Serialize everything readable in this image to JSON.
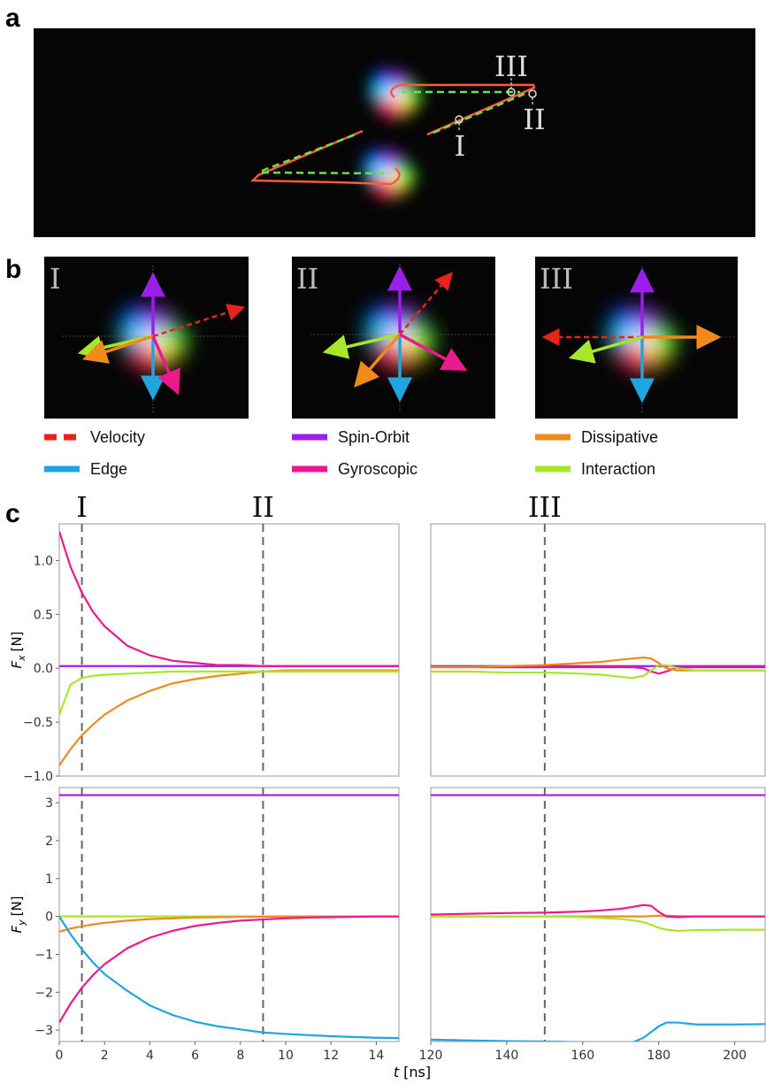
{
  "panel_labels": {
    "a": "a",
    "b": "b",
    "c": "c"
  },
  "panel_a": {
    "markers": [
      "III",
      "II",
      "I"
    ]
  },
  "panel_b": {
    "insets": [
      "I",
      "II",
      "III"
    ],
    "legend": [
      {
        "name": "Velocity",
        "color": "#e8231c",
        "dashed": true
      },
      {
        "name": "Spin-Orbit",
        "color": "#9b1fe8"
      },
      {
        "name": "Dissipative",
        "color": "#f18a1c"
      },
      {
        "name": "Edge",
        "color": "#1fa6e0"
      },
      {
        "name": "Gyroscopic",
        "color": "#ea1a8e"
      },
      {
        "name": "Interaction",
        "color": "#a8e62a"
      }
    ]
  },
  "chart_data": [
    {
      "type": "line",
      "x": [
        0,
        0.5,
        1,
        1.5,
        2,
        3,
        4,
        5,
        6,
        7,
        8,
        9,
        10,
        11,
        12,
        13,
        14,
        15
      ],
      "xlim": [
        0,
        15
      ],
      "ylim": [
        -1.0,
        1.34
      ],
      "yticks": [
        {
          "value": 1,
          "label": "1.0"
        },
        {
          "value": 0.5,
          "label": "0.5"
        },
        {
          "value": 0,
          "label": "0.0"
        },
        {
          "value": -0.5,
          "label": "−0.5"
        },
        {
          "value": -1,
          "label": "−1.0"
        }
      ],
      "y_label": {
        "symbol": "F",
        "subscript": "x",
        "unit": "[N]"
      },
      "vlines": [
        {
          "x": 1,
          "label": "I"
        },
        {
          "x": 9,
          "label": "II"
        }
      ],
      "series": [
        {
          "name": "Spin-Orbit",
          "color": "#9b1fe8",
          "values": [
            0.02,
            0.02,
            0.02,
            0.02,
            0.02,
            0.02,
            0.02,
            0.02,
            0.02,
            0.02,
            0.02,
            0.02,
            0.02,
            0.02,
            0.02,
            0.02,
            0.02,
            0.02
          ]
        },
        {
          "name": "Gyroscopic",
          "color": "#ea1a8e",
          "values": [
            1.27,
            0.94,
            0.7,
            0.52,
            0.39,
            0.21,
            0.12,
            0.07,
            0.05,
            0.03,
            0.03,
            0.02,
            0.02,
            0.02,
            0.02,
            0.02,
            0.02,
            0.02
          ]
        },
        {
          "name": "Dissipative",
          "color": "#f18a1c",
          "values": [
            -0.9,
            -0.75,
            -0.62,
            -0.52,
            -0.43,
            -0.3,
            -0.21,
            -0.14,
            -0.1,
            -0.07,
            -0.05,
            -0.03,
            -0.02,
            -0.02,
            -0.02,
            -0.02,
            -0.02,
            -0.02
          ]
        },
        {
          "name": "Interaction",
          "color": "#a8e62a",
          "values": [
            -0.43,
            -0.15,
            -0.09,
            -0.07,
            -0.06,
            -0.05,
            -0.04,
            -0.03,
            -0.03,
            -0.03,
            -0.03,
            -0.03,
            -0.03,
            -0.03,
            -0.03,
            -0.03,
            -0.03,
            -0.03
          ]
        }
      ]
    },
    {
      "type": "line",
      "x": [
        120,
        130,
        140,
        150,
        160,
        165,
        170,
        173,
        176,
        178,
        180,
        182,
        185,
        190,
        200,
        208
      ],
      "xlim": [
        120,
        208
      ],
      "ylim": [
        -1.0,
        1.34
      ],
      "vlines": [
        {
          "x": 150,
          "label": "III"
        }
      ],
      "series": [
        {
          "name": "Spin-Orbit",
          "color": "#9b1fe8",
          "values": [
            0.02,
            0.02,
            0.02,
            0.02,
            0.02,
            0.02,
            0.02,
            0.02,
            0.02,
            0.02,
            0.02,
            0.02,
            0.02,
            0.02,
            0.02,
            0.02
          ]
        },
        {
          "name": "Gyroscopic",
          "color": "#ea1a8e",
          "values": [
            0.01,
            0.01,
            0.01,
            0.01,
            0.01,
            0.01,
            0.01,
            0.01,
            0.0,
            -0.03,
            -0.05,
            -0.03,
            0.01,
            0.01,
            0.01,
            0.01
          ]
        },
        {
          "name": "Dissipative",
          "color": "#f18a1c",
          "values": [
            0.01,
            0.01,
            0.02,
            0.03,
            0.05,
            0.06,
            0.08,
            0.09,
            0.1,
            0.09,
            0.05,
            0.0,
            -0.02,
            -0.02,
            -0.02,
            -0.02
          ]
        },
        {
          "name": "Interaction",
          "color": "#a8e62a",
          "values": [
            -0.03,
            -0.03,
            -0.04,
            -0.04,
            -0.05,
            -0.06,
            -0.08,
            -0.09,
            -0.07,
            -0.02,
            0.03,
            0.03,
            0.0,
            -0.02,
            -0.02,
            -0.02
          ]
        }
      ]
    },
    {
      "type": "line",
      "x": [
        0,
        0.5,
        1,
        1.5,
        2,
        3,
        4,
        5,
        6,
        7,
        8,
        9,
        10,
        11,
        12,
        13,
        14,
        15
      ],
      "xlim": [
        0,
        15
      ],
      "ylim": [
        -3.3,
        3.4
      ],
      "xticks": [
        0,
        2,
        4,
        6,
        8,
        10,
        12,
        14
      ],
      "yticks": [
        3,
        2,
        1,
        0,
        {
          "value": -1,
          "label": "−1"
        },
        {
          "value": -2,
          "label": "−2"
        },
        {
          "value": -3,
          "label": "−3"
        }
      ],
      "y_label": {
        "symbol": "F",
        "subscript": "y",
        "unit": "[N]"
      },
      "x_label": {
        "symbol": "t",
        "unit": "[ns]"
      },
      "series": [
        {
          "name": "Spin-Orbit",
          "color": "#9b1fe8",
          "values": [
            3.2,
            3.2,
            3.2,
            3.2,
            3.2,
            3.2,
            3.2,
            3.2,
            3.2,
            3.2,
            3.2,
            3.2,
            3.2,
            3.2,
            3.2,
            3.2,
            3.2,
            3.2
          ]
        },
        {
          "name": "Interaction",
          "color": "#a8e62a",
          "values": [
            0,
            0,
            0,
            0,
            0,
            0,
            0,
            0,
            0,
            0,
            0,
            0,
            0,
            0,
            0,
            0,
            0,
            0
          ]
        },
        {
          "name": "Dissipative",
          "color": "#f18a1c",
          "values": [
            -0.4,
            -0.32,
            -0.26,
            -0.21,
            -0.17,
            -0.11,
            -0.07,
            -0.05,
            -0.03,
            -0.02,
            -0.01,
            -0.01,
            0,
            0,
            0,
            0,
            0,
            0
          ]
        },
        {
          "name": "Gyroscopic",
          "color": "#ea1a8e",
          "values": [
            -2.8,
            -2.3,
            -1.88,
            -1.54,
            -1.26,
            -0.84,
            -0.56,
            -0.38,
            -0.25,
            -0.17,
            -0.11,
            -0.08,
            -0.05,
            -0.03,
            -0.02,
            -0.01,
            0,
            0
          ]
        },
        {
          "name": "Edge",
          "color": "#1fa6e0",
          "values": [
            0,
            -0.47,
            -0.87,
            -1.22,
            -1.52,
            -1.96,
            -2.35,
            -2.6,
            -2.78,
            -2.9,
            -2.98,
            -3.06,
            -3.1,
            -3.13,
            -3.16,
            -3.18,
            -3.2,
            -3.21
          ]
        }
      ]
    },
    {
      "type": "line",
      "x": [
        120,
        130,
        140,
        150,
        160,
        165,
        170,
        173,
        176,
        178,
        180,
        182,
        185,
        190,
        200,
        208
      ],
      "xlim": [
        120,
        208
      ],
      "ylim": [
        -3.3,
        3.4
      ],
      "xticks": [
        120,
        140,
        160,
        180,
        200
      ],
      "series": [
        {
          "name": "Spin-Orbit",
          "color": "#9b1fe8",
          "values": [
            3.2,
            3.2,
            3.2,
            3.2,
            3.2,
            3.2,
            3.2,
            3.2,
            3.2,
            3.2,
            3.2,
            3.2,
            3.2,
            3.2,
            3.2,
            3.2
          ]
        },
        {
          "name": "Dissipative",
          "color": "#f18a1c",
          "values": [
            0,
            0,
            0,
            0,
            0,
            0,
            0,
            0,
            0,
            0.01,
            0.02,
            0.02,
            0.01,
            0,
            0,
            0
          ]
        },
        {
          "name": "Gyroscopic",
          "color": "#ea1a8e",
          "values": [
            0.05,
            0.07,
            0.09,
            0.1,
            0.13,
            0.16,
            0.2,
            0.25,
            0.3,
            0.28,
            0.12,
            0.0,
            -0.02,
            0.0,
            0.0,
            0.0
          ]
        },
        {
          "name": "Interaction",
          "color": "#a8e62a",
          "values": [
            0,
            0,
            0,
            0,
            -0.02,
            -0.04,
            -0.07,
            -0.1,
            -0.15,
            -0.22,
            -0.3,
            -0.35,
            -0.38,
            -0.36,
            -0.35,
            -0.35
          ]
        },
        {
          "name": "Edge",
          "color": "#1fa6e0",
          "values": [
            -3.25,
            -3.27,
            -3.29,
            -3.3,
            -3.32,
            -3.33,
            -3.35,
            -3.33,
            -3.2,
            -3.05,
            -2.9,
            -2.8,
            -2.8,
            -2.85,
            -2.85,
            -2.84
          ]
        }
      ]
    }
  ]
}
